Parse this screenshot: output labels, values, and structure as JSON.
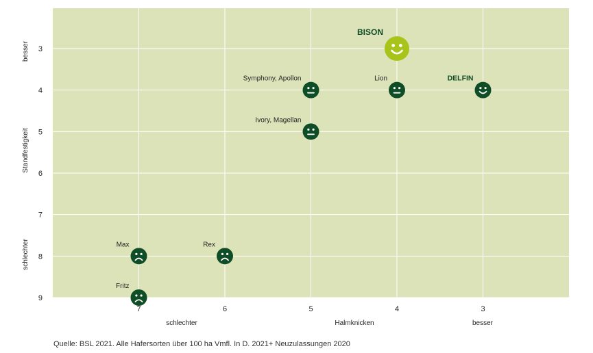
{
  "chart_data": {
    "type": "scatter",
    "xlabel": "Halmknicken",
    "ylabel": "Standfestigkeit",
    "x_low_label": "schlechter",
    "x_high_label": "besser",
    "y_low_label": "schlechter",
    "y_high_label": "besser",
    "x_ticks": [
      7,
      6,
      5,
      4,
      3
    ],
    "y_ticks": [
      3,
      4,
      5,
      6,
      7,
      8,
      9
    ],
    "xlim": [
      8,
      2
    ],
    "ylim": [
      2,
      9
    ],
    "x_reversed": true,
    "y_reversed": true,
    "grid": true,
    "colors": {
      "plot_bg": "#dde3b9",
      "grid": "#ffffff",
      "marker_dark": "#0f4d26",
      "marker_highlight": "#a8c41a",
      "label_dark": "#0f4d26",
      "text": "#222222"
    },
    "points": [
      {
        "label": "BISON",
        "x": 4,
        "y": 3,
        "face": "happy",
        "highlight": true,
        "bold": true
      },
      {
        "label": "DELFIN",
        "x": 3,
        "y": 4,
        "face": "happy",
        "highlight": false,
        "bold": true
      },
      {
        "label": "Lion",
        "x": 4,
        "y": 4,
        "face": "neutral",
        "highlight": false,
        "bold": false
      },
      {
        "label": "Symphony, Apollon",
        "x": 5,
        "y": 4,
        "face": "neutral",
        "highlight": false,
        "bold": false
      },
      {
        "label": "Ivory, Magellan",
        "x": 5,
        "y": 5,
        "face": "neutral",
        "highlight": false,
        "bold": false
      },
      {
        "label": "Max",
        "x": 7,
        "y": 8,
        "face": "sad",
        "highlight": false,
        "bold": false
      },
      {
        "label": "Rex",
        "x": 6,
        "y": 8,
        "face": "sad",
        "highlight": false,
        "bold": false
      },
      {
        "label": "Fritz",
        "x": 7,
        "y": 9,
        "face": "sad",
        "highlight": false,
        "bold": false
      }
    ]
  },
  "source": "Quelle: BSL 2021. Alle Hafersorten über 100 ha Vmfl. In D. 2021+ Neuzulassungen 2020"
}
